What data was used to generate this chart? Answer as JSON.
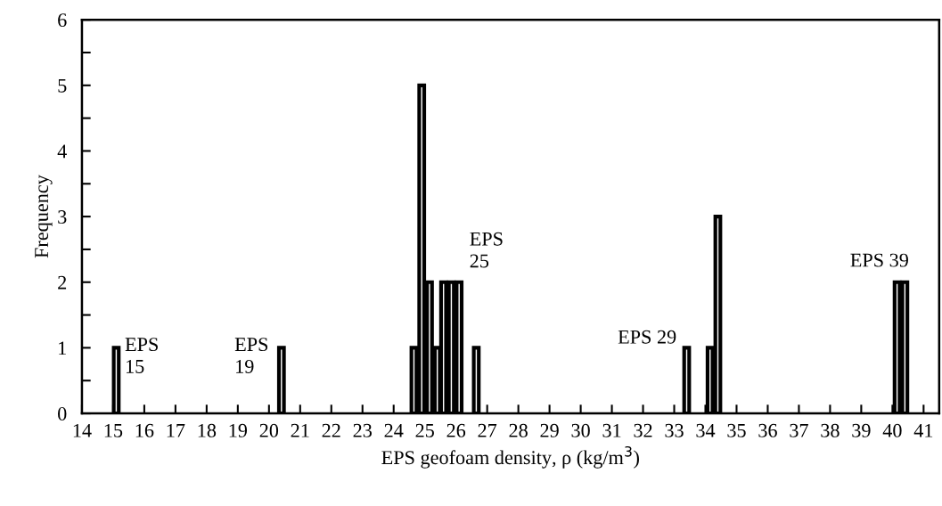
{
  "chart_data": {
    "type": "bar",
    "xlabel": "EPS geofoam density, ρ (kg/m$^{3}$)",
    "ylabel": "Frequency",
    "x": [
      15.1,
      20.4,
      24.65,
      24.9,
      25.15,
      25.4,
      25.6,
      25.85,
      26.1,
      26.65,
      33.4,
      34.15,
      34.4,
      40.15,
      40.4
    ],
    "values": [
      1,
      1,
      1,
      5,
      2,
      1,
      2,
      2,
      2,
      1,
      1,
      1,
      3,
      2,
      2
    ],
    "color": "#000000",
    "xlim": [
      14,
      41.5
    ],
    "xticks": [
      14,
      15,
      16,
      17,
      18,
      19,
      20,
      21,
      22,
      23,
      24,
      25,
      26,
      27,
      28,
      29,
      30,
      31,
      32,
      33,
      34,
      35,
      36,
      37,
      38,
      39,
      40,
      41
    ],
    "ylim": [
      0,
      6
    ],
    "yticks": [
      0,
      1,
      2,
      3,
      4,
      5,
      6
    ],
    "grid": false,
    "legend": false,
    "annotations": [
      "EPS\n15",
      "EPS\n19",
      "EPS\n25",
      "EPS 29",
      "EPS 39"
    ]
  }
}
